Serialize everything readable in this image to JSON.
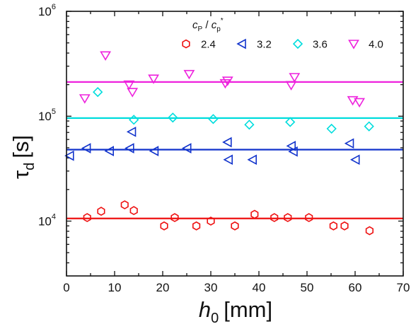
{
  "chart_data": {
    "type": "scatter",
    "xlabel": {
      "symbol": "h",
      "sub": "0",
      "unit": "[mm]"
    },
    "ylabel": {
      "symbol": "τ",
      "sub": "d",
      "unit": "[s]"
    },
    "xlim": [
      0,
      70
    ],
    "ylim": [
      3000,
      1000000
    ],
    "yscale": "log",
    "xticks": [
      0,
      10,
      20,
      30,
      40,
      50,
      60,
      70
    ],
    "yticks": [
      {
        "value": 10000,
        "base": "10",
        "exp": "4"
      },
      {
        "value": 100000,
        "base": "10",
        "exp": "5"
      },
      {
        "value": 1000000,
        "base": "10",
        "exp": "6"
      }
    ],
    "grid": false,
    "legend": {
      "title": {
        "c1": "c",
        "s1": "P",
        "sep": " / ",
        "c2": "c",
        "s2": "p",
        "sup": "*"
      },
      "placement": "top-right"
    },
    "series": [
      {
        "name": "2.4",
        "marker": "hexagon",
        "color": "#ee1111",
        "fit": 10600,
        "points": [
          [
            4.3,
            10800
          ],
          [
            7.2,
            12400
          ],
          [
            12.1,
            14300
          ],
          [
            14.0,
            12600
          ],
          [
            20.3,
            9000
          ],
          [
            22.5,
            10800
          ],
          [
            27.0,
            9000
          ],
          [
            30.0,
            10000
          ],
          [
            35.0,
            9000
          ],
          [
            39.1,
            11600
          ],
          [
            43.2,
            10800
          ],
          [
            46.0,
            10800
          ],
          [
            50.4,
            10800
          ],
          [
            55.5,
            9000
          ],
          [
            57.8,
            9000
          ],
          [
            63.0,
            8100
          ]
        ]
      },
      {
        "name": "3.2",
        "marker": "triangle-left",
        "color": "#1133cc",
        "fit": 48000,
        "points": [
          [
            0.7,
            42000
          ],
          [
            4.2,
            49500
          ],
          [
            9.0,
            46500
          ],
          [
            13.2,
            49500
          ],
          [
            13.6,
            71000
          ],
          [
            18.3,
            46500
          ],
          [
            25.1,
            49500
          ],
          [
            33.5,
            56500
          ],
          [
            33.7,
            38500
          ],
          [
            38.7,
            38500
          ],
          [
            46.8,
            52000
          ],
          [
            47.2,
            46000
          ],
          [
            58.9,
            55000
          ],
          [
            60.1,
            38500
          ]
        ]
      },
      {
        "name": "3.6",
        "marker": "diamond",
        "color": "#00dddd",
        "fit": 96000,
        "points": [
          [
            6.5,
            170000
          ],
          [
            14.0,
            92500
          ],
          [
            22.1,
            97000
          ],
          [
            30.5,
            94000
          ],
          [
            38.0,
            83000
          ],
          [
            46.5,
            88000
          ],
          [
            55.1,
            76000
          ],
          [
            62.9,
            80000
          ]
        ]
      },
      {
        "name": "4.0",
        "marker": "triangle-down",
        "color": "#ee22dd",
        "fit": 212000,
        "points": [
          [
            3.8,
            148000
          ],
          [
            8.1,
            380000
          ],
          [
            13.0,
            200000
          ],
          [
            13.7,
            170000
          ],
          [
            18.1,
            228000
          ],
          [
            25.5,
            252000
          ],
          [
            33.0,
            206000
          ],
          [
            33.5,
            218000
          ],
          [
            46.7,
            198000
          ],
          [
            47.4,
            236000
          ],
          [
            59.5,
            142000
          ],
          [
            60.9,
            136000
          ]
        ]
      }
    ]
  }
}
